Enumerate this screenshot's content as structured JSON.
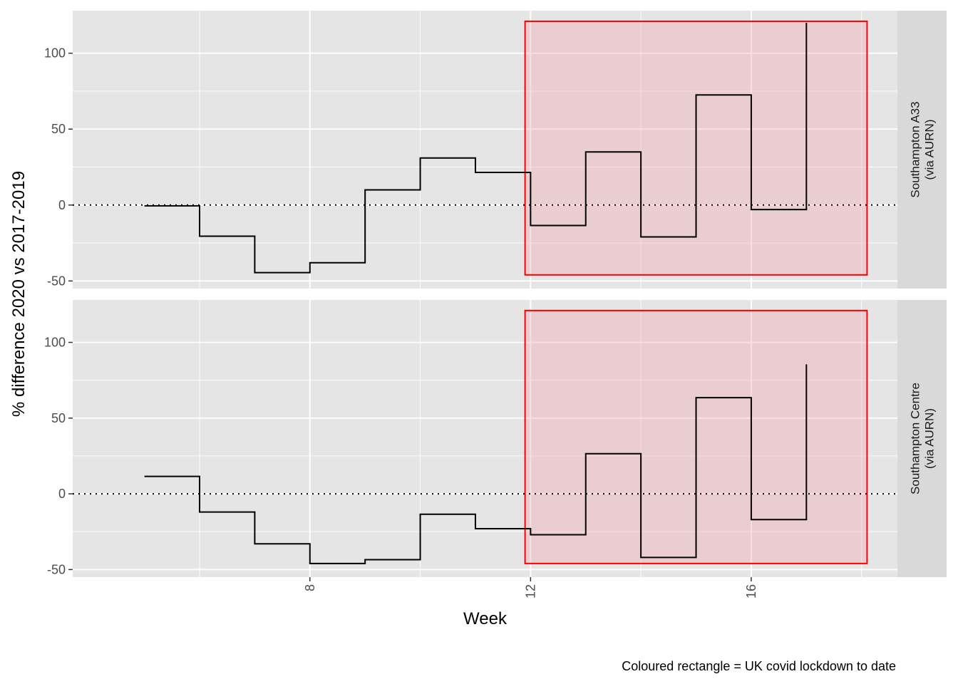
{
  "chart_data": {
    "type": "line",
    "step": true,
    "xlabel": "Week",
    "ylabel": "% difference 2020 vs 2017-2019",
    "caption": "Coloured rectangle = UK covid lockdown to date",
    "xlim": [
      3.7,
      18.65
    ],
    "ylim": [
      -55,
      128
    ],
    "x_ticks": [
      8,
      12,
      16
    ],
    "y_ticks": [
      -50,
      0,
      50,
      100
    ],
    "reference_line": {
      "y": 0,
      "style": "dotted"
    },
    "lockdown_rect": {
      "xmin": 11.9,
      "xmax": 18.1,
      "ymin": -46,
      "ymax": 121,
      "fill": "#f4a0a8",
      "stroke": "#ff0000"
    },
    "colors": {
      "line": "#000000",
      "panel": "#e5e5e5",
      "grid": "#ffffff",
      "strip": "#d9d9d9"
    },
    "grid": true,
    "panels": [
      {
        "name": "Southampton A33\n(via AURN)",
        "x": [
          5,
          6,
          7,
          8,
          9,
          10,
          11,
          12,
          13,
          14,
          15,
          16,
          17
        ],
        "values": [
          -0.5,
          -20.5,
          -44.5,
          -38,
          10,
          31,
          21.5,
          -13.5,
          35,
          -21,
          72.5,
          -3,
          120
        ]
      },
      {
        "name": "Southampton Centre\n(via AURN)",
        "x": [
          5,
          6,
          7,
          8,
          9,
          10,
          11,
          12,
          13,
          14,
          15,
          16,
          17
        ],
        "values": [
          11.5,
          -12,
          -33,
          -46,
          -43.5,
          -13.5,
          -23,
          -27,
          26.5,
          -42,
          63.5,
          -17,
          85.5
        ]
      }
    ]
  }
}
